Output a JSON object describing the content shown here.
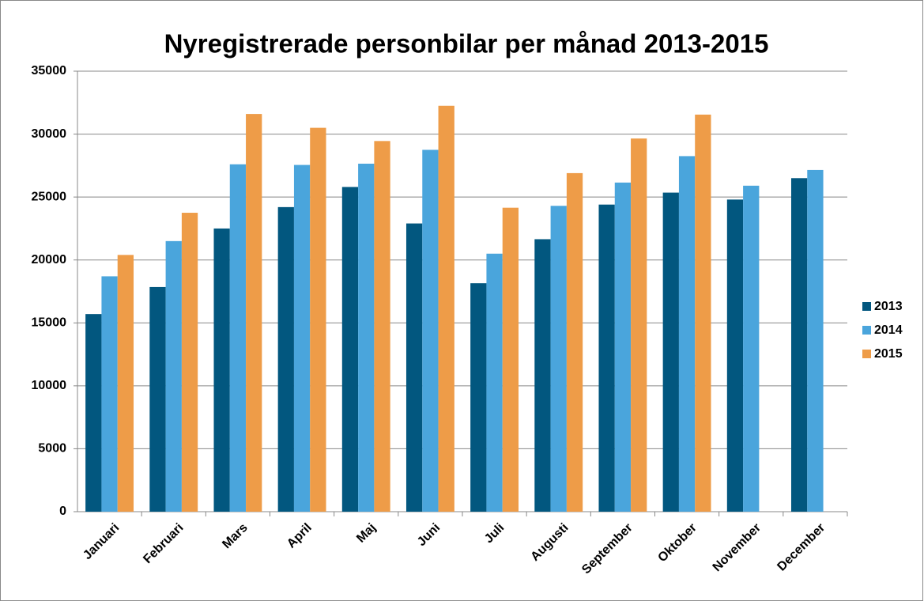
{
  "chart_data": {
    "type": "bar",
    "title": "Nyregistrerade personbilar per månad 2013-2015",
    "categories": [
      "Januari",
      "Februari",
      "Mars",
      "April",
      "Maj",
      "Juni",
      "Juli",
      "Augusti",
      "September",
      "Oktober",
      "November",
      "December"
    ],
    "series": [
      {
        "name": "2013",
        "color": "#02577f",
        "values": [
          15700,
          17850,
          22500,
          24200,
          25800,
          22900,
          18150,
          21650,
          24400,
          25350,
          24800,
          26500
        ]
      },
      {
        "name": "2014",
        "color": "#4aa5dc",
        "values": [
          18700,
          21500,
          27600,
          27550,
          27650,
          28750,
          20500,
          24300,
          26150,
          28250,
          25900,
          27150
        ]
      },
      {
        "name": "2015",
        "color": "#ee9c48",
        "values": [
          20400,
          23750,
          31600,
          30500,
          29450,
          32250,
          24150,
          26900,
          29650,
          31550,
          null,
          null
        ]
      }
    ],
    "ylim": [
      0,
      35000
    ],
    "yticks": [
      0,
      5000,
      10000,
      15000,
      20000,
      25000,
      30000,
      35000
    ],
    "grid": true,
    "legend": "right"
  }
}
